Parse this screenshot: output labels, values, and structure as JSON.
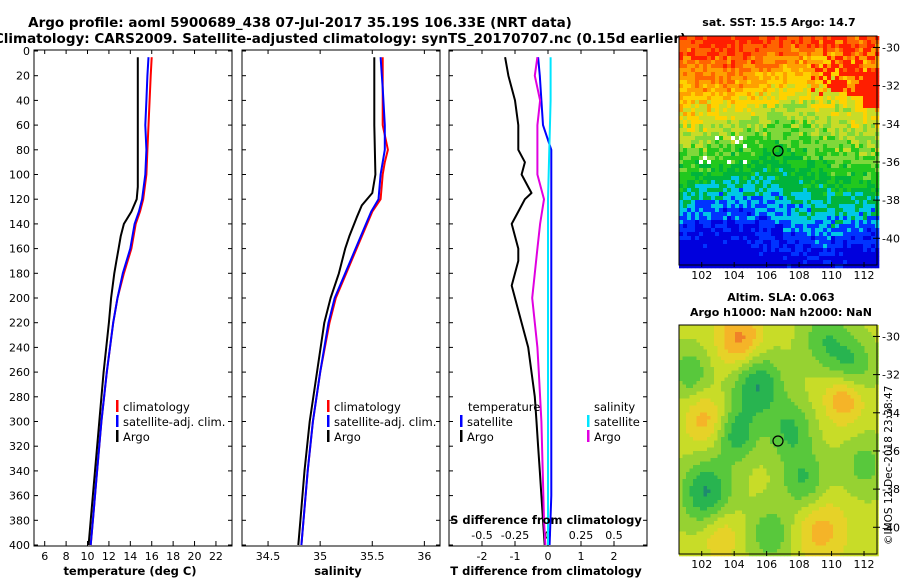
{
  "header": {
    "title_line1": "Argo profile: aoml 5900689_438 07-Jul-2017 35.19S 106.33E (NRT data)",
    "title_line2": "Climatology: CARS2009. Satellite-adjusted climatology: synTS_20170707.nc (0.15d earlier)"
  },
  "colors": {
    "climatology": "#ff0000",
    "satellite": "#0000ff",
    "argo": "#000000",
    "sat_salinity": "#00e5ff",
    "argo_salinity_diff": "#e000e0"
  },
  "depth_axis": {
    "ticks": [
      "0",
      "20",
      "40",
      "60",
      "80",
      "100",
      "120",
      "140",
      "160",
      "180",
      "200",
      "220",
      "240",
      "260",
      "280",
      "300",
      "320",
      "340",
      "360",
      "380",
      "400"
    ]
  },
  "panels": {
    "temperature": {
      "xlabel": "temperature (deg C)",
      "ticks": [
        "6",
        "8",
        "10",
        "12",
        "14",
        "16",
        "18",
        "20",
        "22"
      ]
    },
    "salinity": {
      "xlabel": "salinity",
      "ticks": [
        "34.5",
        "35",
        "35.5",
        "36"
      ]
    },
    "difference": {
      "xlabel": "T difference from climatology",
      "ticks": [
        "-2",
        "-1",
        "0",
        "1",
        "2"
      ],
      "top_label": "S difference from climatology",
      "top_ticks": [
        "-0.5",
        "-0.25",
        "0",
        "0.25",
        "0.5"
      ]
    }
  },
  "legend_profile": {
    "climatology": "climatology",
    "satellite": "satellite-adj. clim.",
    "argo": "Argo"
  },
  "legend_diff": {
    "temperature_head": "temperature",
    "salinity_head": "salinity",
    "t_satellite": "satellite",
    "t_argo": "Argo",
    "s_satellite": "satellite",
    "s_argo": "Argo"
  },
  "map_sst": {
    "title": "sat. SST: 15.5 Argo: 14.7",
    "lat_ticks": [
      "-30",
      "-32",
      "-34",
      "-36",
      "-38",
      "-40"
    ],
    "lon_ticks": [
      "102",
      "104",
      "106",
      "108",
      "110",
      "112"
    ]
  },
  "map_sla": {
    "title_line1": "Altim. SLA: 0.063",
    "title_line2": "Argo h1000: NaN h2000: NaN",
    "lat_ticks": [
      "-30",
      "-32",
      "-34",
      "-36",
      "-38",
      "-40"
    ],
    "lon_ticks": [
      "102",
      "104",
      "106",
      "108",
      "110",
      "112"
    ]
  },
  "credit": "©IMOS 12-Dec-2018 23:38:47",
  "chart_data": [
    {
      "type": "line",
      "title": "temperature profile",
      "xlabel": "temperature (deg C)",
      "ylabel": "depth",
      "xlim": [
        5,
        23.5
      ],
      "ylim": [
        400,
        0
      ],
      "series": [
        {
          "name": "climatology",
          "depth": [
            5,
            20,
            40,
            60,
            80,
            100,
            120,
            130,
            140,
            160,
            180,
            200,
            220,
            260,
            300,
            340,
            380,
            400
          ],
          "values": [
            16.0,
            15.9,
            15.8,
            15.7,
            15.6,
            15.5,
            15.2,
            14.9,
            14.5,
            14.1,
            13.4,
            12.8,
            12.4,
            11.8,
            11.3,
            10.9,
            10.5,
            10.3
          ]
        },
        {
          "name": "satellite-adj. clim.",
          "depth": [
            5,
            20,
            40,
            60,
            80,
            100,
            120,
            130,
            140,
            160,
            180,
            200,
            220,
            260,
            300,
            340,
            380,
            400
          ],
          "values": [
            15.7,
            15.6,
            15.5,
            15.4,
            15.5,
            15.4,
            15.1,
            14.8,
            14.4,
            14.0,
            13.3,
            12.8,
            12.4,
            11.8,
            11.3,
            10.9,
            10.5,
            10.3
          ]
        },
        {
          "name": "Argo",
          "depth": [
            5,
            40,
            80,
            110,
            120,
            130,
            140,
            150,
            160,
            170,
            180,
            200,
            220,
            260,
            300,
            340,
            380,
            400
          ],
          "values": [
            14.7,
            14.7,
            14.7,
            14.7,
            14.6,
            14.1,
            13.4,
            13.1,
            12.9,
            12.7,
            12.5,
            12.2,
            12.0,
            11.5,
            11.1,
            10.7,
            10.3,
            10.1
          ]
        }
      ]
    },
    {
      "type": "line",
      "title": "salinity profile",
      "xlabel": "salinity",
      "ylabel": "depth",
      "xlim": [
        34.25,
        36.15
      ],
      "ylim": [
        400,
        0
      ],
      "series": [
        {
          "name": "climatology",
          "depth": [
            5,
            30,
            60,
            80,
            90,
            100,
            120,
            130,
            150,
            180,
            200,
            220,
            260,
            300,
            340,
            380,
            400
          ],
          "values": [
            35.6,
            35.6,
            35.6,
            35.65,
            35.62,
            35.6,
            35.58,
            35.5,
            35.4,
            35.25,
            35.15,
            35.09,
            35.0,
            34.93,
            34.88,
            34.84,
            34.82
          ]
        },
        {
          "name": "satellite-adj. clim.",
          "depth": [
            5,
            30,
            60,
            80,
            90,
            100,
            120,
            130,
            150,
            180,
            200,
            220,
            260,
            300,
            340,
            380,
            400
          ],
          "values": [
            35.58,
            35.6,
            35.62,
            35.62,
            35.6,
            35.58,
            35.56,
            35.49,
            35.39,
            35.24,
            35.14,
            35.08,
            35.0,
            34.93,
            34.88,
            34.84,
            34.82
          ]
        },
        {
          "name": "Argo",
          "depth": [
            5,
            60,
            100,
            115,
            125,
            135,
            150,
            160,
            180,
            200,
            220,
            260,
            300,
            340,
            380,
            400
          ],
          "values": [
            35.52,
            35.52,
            35.53,
            35.5,
            35.4,
            35.35,
            35.28,
            35.24,
            35.18,
            35.1,
            35.04,
            34.97,
            34.9,
            34.85,
            34.81,
            34.79
          ]
        }
      ]
    },
    {
      "type": "line",
      "title": "difference from climatology",
      "xlabel": "T difference from climatology",
      "ylabel": "depth",
      "xlim": [
        -3,
        3
      ],
      "ylim": [
        400,
        0
      ],
      "top_xlim": [
        -0.75,
        0.75
      ],
      "series": [
        {
          "name": "temperature satellite",
          "depth": [
            5,
            20,
            40,
            60,
            80,
            100,
            120,
            140,
            160,
            180,
            200,
            240,
            280,
            320,
            360,
            400
          ],
          "values": [
            -0.3,
            -0.25,
            -0.2,
            -0.15,
            0.1,
            0.1,
            0.1,
            0.1,
            0.1,
            0.1,
            0.1,
            0.1,
            0.1,
            0.1,
            0.1,
            0.05
          ]
        },
        {
          "name": "temperature Argo",
          "depth": [
            5,
            20,
            40,
            60,
            80,
            90,
            100,
            110,
            115,
            120,
            130,
            140,
            150,
            160,
            170,
            180,
            190,
            200,
            210,
            220,
            240,
            260,
            280,
            300,
            320,
            340,
            360,
            380,
            400
          ],
          "values": [
            -1.3,
            -1.2,
            -1.0,
            -0.9,
            -0.9,
            -0.7,
            -0.8,
            -0.6,
            -0.5,
            -0.7,
            -0.9,
            -1.1,
            -1.0,
            -0.9,
            -0.9,
            -1.0,
            -1.1,
            -1.0,
            -0.9,
            -0.8,
            -0.6,
            -0.5,
            -0.4,
            -0.35,
            -0.3,
            -0.25,
            -0.2,
            -0.15,
            -0.1
          ]
        },
        {
          "name": "salinity satellite",
          "depth": [
            5,
            40,
            80,
            120,
            160,
            200,
            240,
            280,
            320,
            360,
            400
          ],
          "values": [
            0.02,
            0.02,
            0.01,
            0.0,
            0.0,
            0.0,
            0.0,
            0.0,
            0.0,
            0.0,
            0.0
          ]
        },
        {
          "name": "salinity Argo",
          "depth": [
            5,
            20,
            40,
            60,
            80,
            100,
            120,
            140,
            160,
            180,
            200,
            220,
            240,
            260,
            280,
            300,
            340,
            380,
            400
          ],
          "values": [
            -0.08,
            -0.1,
            -0.06,
            -0.08,
            -0.08,
            -0.08,
            -0.03,
            -0.06,
            -0.08,
            -0.1,
            -0.12,
            -0.1,
            -0.08,
            -0.07,
            -0.06,
            -0.05,
            -0.04,
            -0.03,
            -0.02
          ]
        }
      ]
    }
  ]
}
